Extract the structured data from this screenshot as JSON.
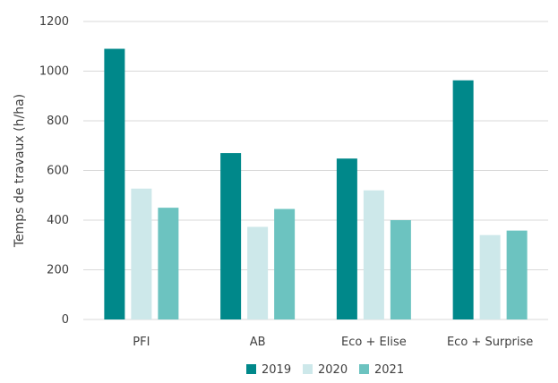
{
  "chart_data": {
    "type": "bar",
    "categories": [
      "PFI",
      "AB",
      "Eco + Elise",
      "Eco + Surprise"
    ],
    "series": [
      {
        "name": "2019",
        "color": "#00888a",
        "values": [
          1090,
          670,
          648,
          963
        ]
      },
      {
        "name": "2020",
        "color": "#cde8ea",
        "values": [
          527,
          373,
          520,
          340
        ]
      },
      {
        "name": "2021",
        "color": "#6cc3c0",
        "values": [
          450,
          445,
          400,
          358
        ]
      }
    ],
    "ylabel": "Temps de travaux (h/ha)",
    "xlabel": "",
    "ylim": [
      0,
      1200
    ],
    "yticks": [
      0,
      200,
      400,
      600,
      800,
      1000,
      1200
    ],
    "grid": true,
    "legend_position": "bottom"
  }
}
